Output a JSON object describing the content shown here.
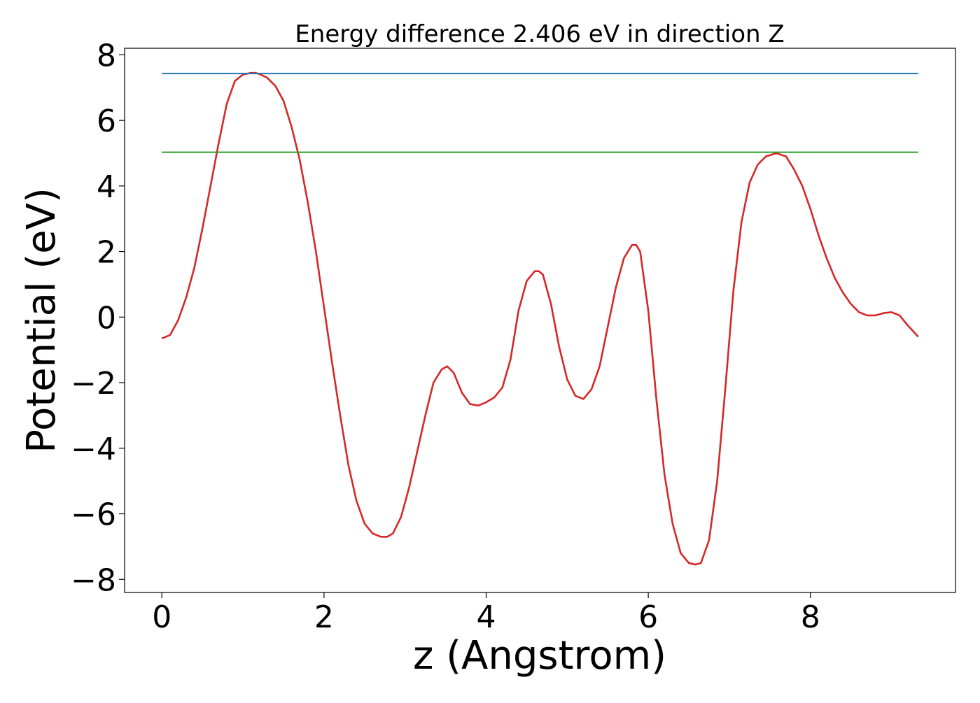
{
  "chart_data": {
    "type": "line",
    "title": "Energy difference 2.406 eV in direction Z",
    "xlabel": "z (Angstrom)",
    "ylabel": "Potential (eV)",
    "xlim": [
      -0.46,
      9.79
    ],
    "ylim": [
      -8.4,
      8.2
    ],
    "xticks": [
      0,
      2,
      4,
      6,
      8
    ],
    "yticks": [
      -8,
      -6,
      -4,
      -2,
      0,
      2,
      4,
      6,
      8
    ],
    "xtick_labels": [
      "0",
      "2",
      "4",
      "6",
      "8"
    ],
    "ytick_labels": [
      "−8",
      "−6",
      "−4",
      "−2",
      "0",
      "2",
      "4",
      "6",
      "8"
    ],
    "grid": false,
    "series": [
      {
        "color": "#d62728",
        "x": [
          0,
          0.1,
          0.2,
          0.3,
          0.4,
          0.5,
          0.6,
          0.7,
          0.8,
          0.9,
          1.0,
          1.1,
          1.15,
          1.2,
          1.3,
          1.4,
          1.5,
          1.6,
          1.7,
          1.8,
          1.9,
          2.0,
          2.1,
          2.2,
          2.3,
          2.4,
          2.5,
          2.6,
          2.7,
          2.78,
          2.85,
          2.95,
          3.05,
          3.15,
          3.25,
          3.35,
          3.45,
          3.52,
          3.6,
          3.7,
          3.8,
          3.9,
          4.0,
          4.1,
          4.2,
          4.3,
          4.4,
          4.5,
          4.6,
          4.65,
          4.7,
          4.8,
          4.9,
          5.0,
          5.1,
          5.2,
          5.3,
          5.4,
          5.5,
          5.6,
          5.7,
          5.8,
          5.85,
          5.9,
          6.0,
          6.1,
          6.2,
          6.3,
          6.4,
          6.5,
          6.58,
          6.65,
          6.75,
          6.85,
          6.95,
          7.05,
          7.15,
          7.25,
          7.35,
          7.45,
          7.58,
          7.7,
          7.8,
          7.9,
          8.0,
          8.1,
          8.2,
          8.3,
          8.4,
          8.5,
          8.6,
          8.7,
          8.8,
          8.9,
          9.0,
          9.1,
          9.2,
          9.33
        ],
        "y": [
          -0.65,
          -0.55,
          -0.1,
          0.6,
          1.5,
          2.7,
          4.0,
          5.3,
          6.5,
          7.2,
          7.4,
          7.45,
          7.45,
          7.42,
          7.3,
          7.05,
          6.6,
          5.8,
          4.8,
          3.5,
          2.0,
          0.3,
          -1.4,
          -3.0,
          -4.5,
          -5.6,
          -6.3,
          -6.6,
          -6.7,
          -6.7,
          -6.6,
          -6.1,
          -5.2,
          -4.1,
          -3.0,
          -2.0,
          -1.6,
          -1.5,
          -1.7,
          -2.3,
          -2.65,
          -2.7,
          -2.6,
          -2.45,
          -2.15,
          -1.3,
          0.2,
          1.1,
          1.4,
          1.4,
          1.3,
          0.4,
          -0.9,
          -1.9,
          -2.4,
          -2.5,
          -2.2,
          -1.5,
          -0.3,
          0.9,
          1.8,
          2.2,
          2.2,
          2.0,
          0.2,
          -2.5,
          -4.8,
          -6.3,
          -7.2,
          -7.5,
          -7.55,
          -7.5,
          -6.8,
          -5.0,
          -2.2,
          0.8,
          2.9,
          4.1,
          4.65,
          4.9,
          5.0,
          4.9,
          4.5,
          4.0,
          3.3,
          2.5,
          1.8,
          1.2,
          0.75,
          0.4,
          0.15,
          0.05,
          0.05,
          0.12,
          0.15,
          0.05,
          -0.25,
          -0.6
        ]
      },
      {
        "color": "#1f77b4",
        "x": [
          0,
          9.33
        ],
        "y": [
          7.43,
          7.43
        ]
      },
      {
        "color": "#2ca02c",
        "x": [
          0,
          9.33
        ],
        "y": [
          5.03,
          5.03
        ]
      }
    ]
  }
}
